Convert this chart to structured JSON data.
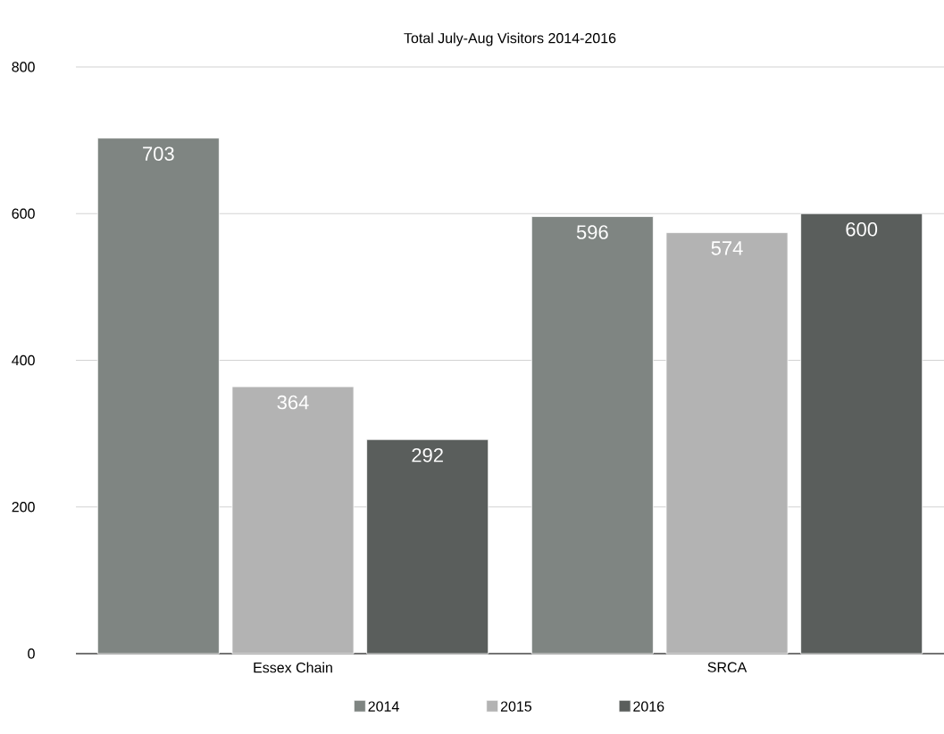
{
  "chart_data": {
    "type": "bar",
    "title": "Total July-Aug Visitors 2014-2016",
    "categories": [
      "Essex Chain",
      "SRCA"
    ],
    "series": [
      {
        "name": "2014",
        "color": "#7f8582",
        "values": [
          703,
          596
        ]
      },
      {
        "name": "2015",
        "color": "#b3b3b3",
        "values": [
          364,
          574
        ]
      },
      {
        "name": "2016",
        "color": "#5a5e5c",
        "values": [
          292,
          600
        ]
      }
    ],
    "ylim": [
      0,
      800
    ],
    "yticks": [
      0,
      200,
      400,
      600,
      800
    ],
    "grid": "y",
    "legend": "bottom",
    "data_labels": true
  }
}
